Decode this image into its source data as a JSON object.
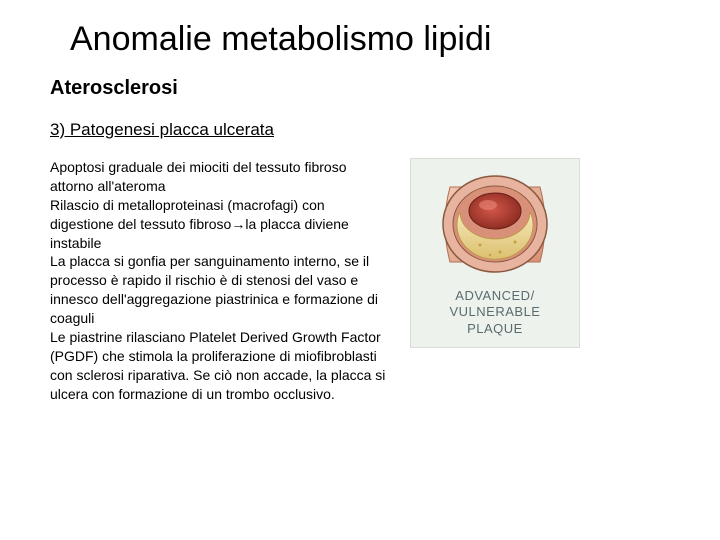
{
  "title": "Anomalie metabolismo lipidi",
  "subtitle": "Aterosclerosi",
  "section_heading": "3) Patogenesi placca ulcerata",
  "body_text": "Apoptosi graduale dei miociti del tessuto fibroso attorno all'ateroma\nRilascio di metalloproteinasi (macrofagi) con digestione del tessuto fibroso→la placca diviene instabile\nLa placca si gonfia per sanguinamento interno, se il processo è rapido il rischio è di stenosi del vaso e innesco dell'aggregazione piastrinica e formazione di coaguli\nLe piastrine rilasciano Platelet Derived Growth Factor (PGDF) che stimola la proliferazione di miofibroblasti con sclerosi riparativa. Se ciò non accade, la placca si ulcera con formazione di un trombo occlusivo.",
  "figure": {
    "caption_line1": "ADVANCED/",
    "caption_line2": "VULNERABLE",
    "caption_line3": "PLAQUE",
    "colors": {
      "outer_wall": "#e8b4a0",
      "inner_wall": "#d89078",
      "lumen": "#b2362a",
      "lumen_light": "#d4574a",
      "plaque": "#f5e8b8",
      "plaque_dark": "#dcc070",
      "edge": "#8a5a40",
      "caption_color": "#5a6b70",
      "panel_bg": "#eef2ec"
    }
  }
}
